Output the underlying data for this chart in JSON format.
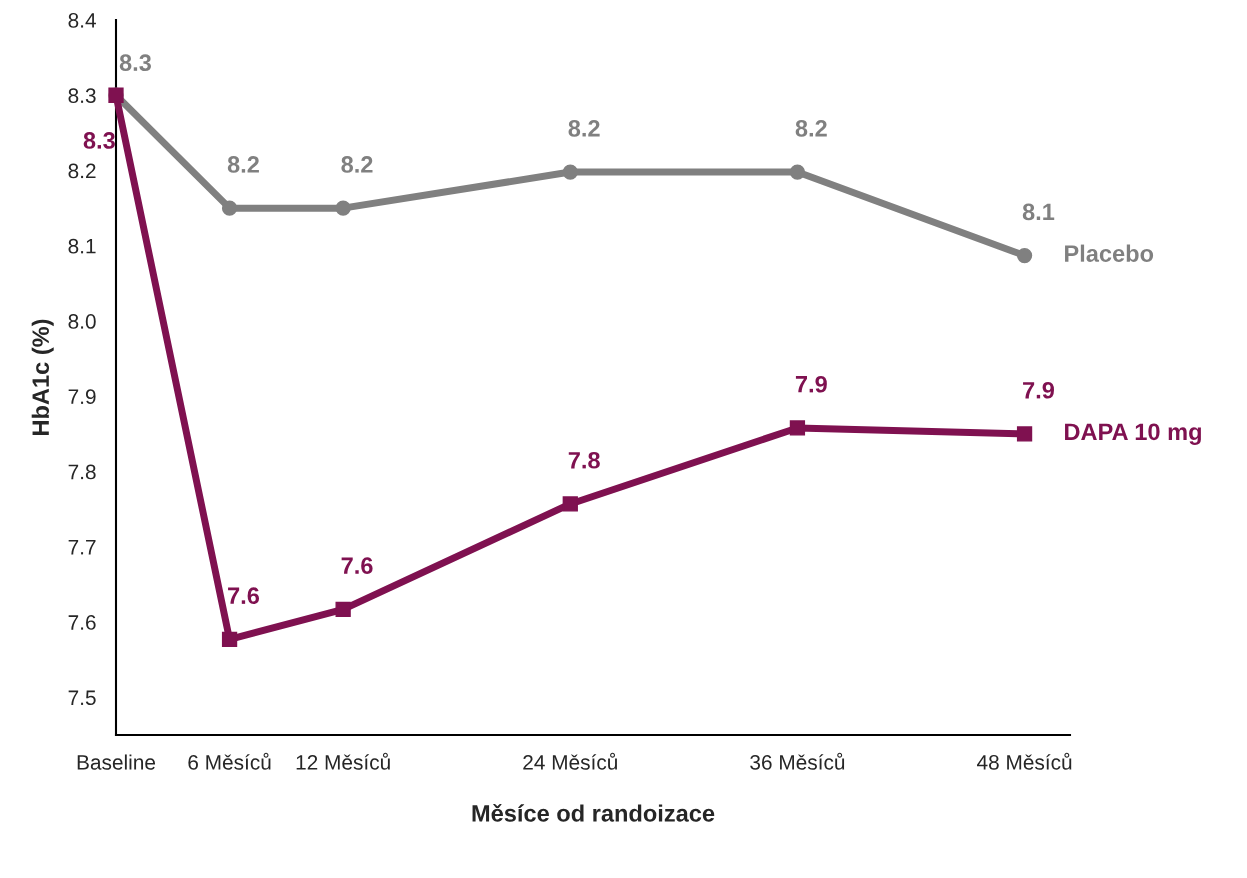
{
  "chart_data": {
    "type": "line",
    "xlabel": "Měsíce od randoizace",
    "ylabel": "HbA1c (%)",
    "x": [
      0,
      6,
      12,
      24,
      36,
      48
    ],
    "xlim": [
      0,
      50.4
    ],
    "xticks": [
      {
        "value": 0,
        "label": "Baseline"
      },
      {
        "value": 6,
        "label": "6 Měsíců"
      },
      {
        "value": 12,
        "label": "12 Měsíců"
      },
      {
        "value": 24,
        "label": "24 Měsíců"
      },
      {
        "value": 36,
        "label": "36 Měsíců"
      },
      {
        "value": 48,
        "label": "48 Měsíců"
      }
    ],
    "ylim": [
      7.45,
      8.4
    ],
    "yticks": [
      7.5,
      7.6,
      7.7,
      7.8,
      7.9,
      {
        "value": 8,
        "label": "8.0"
      },
      8.1,
      8.2,
      8.3,
      8.4
    ],
    "grid": false,
    "legend": false,
    "series": [
      {
        "name": "Placebo",
        "color": "#808080",
        "marker": "circle",
        "values": [
          8.3,
          8.15,
          8.15,
          8.198,
          8.198,
          8.087
        ],
        "value_labels": [
          "8.3",
          "8.2",
          "8.2",
          "8.2",
          "8.2",
          "8.1"
        ]
      },
      {
        "name": "DAPA 10 mg",
        "color": "#7f1150",
        "marker": "square",
        "values": [
          8.3,
          7.577,
          7.617,
          7.757,
          7.858,
          7.85
        ],
        "value_labels": [
          "8.3",
          "7.6",
          "7.6",
          "7.8",
          "7.9",
          "7.9"
        ]
      }
    ]
  }
}
